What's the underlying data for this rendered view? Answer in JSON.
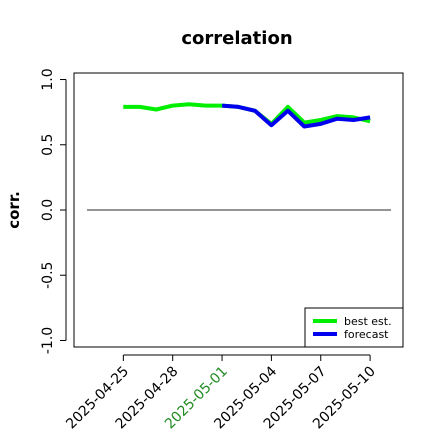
{
  "chart_data": {
    "type": "line",
    "title": "correlation",
    "xlabel": "",
    "ylabel": "corr.",
    "ylim": [
      -1.05,
      1.05
    ],
    "yticks": [
      {
        "value": -1.0,
        "label": "-1.0"
      },
      {
        "value": -0.5,
        "label": "-0.5"
      },
      {
        "value": 0.0,
        "label": "0.0"
      },
      {
        "value": 0.5,
        "label": "0.5"
      },
      {
        "value": 1.0,
        "label": "1.0"
      }
    ],
    "xlim": [
      "2025-04-22",
      "2025-05-12"
    ],
    "xticks": [
      {
        "date": "2025-04-25",
        "label": "2025-04-25",
        "color": "#000000"
      },
      {
        "date": "2025-04-28",
        "label": "2025-04-28",
        "color": "#000000"
      },
      {
        "date": "2025-05-01",
        "label": "2025-05-01",
        "color": "#228b22"
      },
      {
        "date": "2025-05-04",
        "label": "2025-05-04",
        "color": "#000000"
      },
      {
        "date": "2025-05-07",
        "label": "2025-05-07",
        "color": "#000000"
      },
      {
        "date": "2025-05-10",
        "label": "2025-05-10",
        "color": "#000000"
      }
    ],
    "hline": {
      "y": 0,
      "color": "#555555"
    },
    "series": [
      {
        "name": "best est.",
        "color": "#00ee00",
        "points": [
          {
            "x": "2025-04-25",
            "y": 0.79
          },
          {
            "x": "2025-04-26",
            "y": 0.79
          },
          {
            "x": "2025-04-27",
            "y": 0.77
          },
          {
            "x": "2025-04-28",
            "y": 0.8
          },
          {
            "x": "2025-04-29",
            "y": 0.81
          },
          {
            "x": "2025-04-30",
            "y": 0.8
          },
          {
            "x": "2025-05-01",
            "y": 0.8
          },
          {
            "x": "2025-05-02",
            "y": 0.79
          },
          {
            "x": "2025-05-03",
            "y": 0.76
          },
          {
            "x": "2025-05-04",
            "y": 0.66
          },
          {
            "x": "2025-05-05",
            "y": 0.79
          },
          {
            "x": "2025-05-06",
            "y": 0.67
          },
          {
            "x": "2025-05-07",
            "y": 0.69
          },
          {
            "x": "2025-05-08",
            "y": 0.72
          },
          {
            "x": "2025-05-09",
            "y": 0.71
          },
          {
            "x": "2025-05-10",
            "y": 0.68
          }
        ]
      },
      {
        "name": "forecast",
        "color": "#0000ee",
        "points": [
          {
            "x": "2025-05-01",
            "y": 0.8
          },
          {
            "x": "2025-05-02",
            "y": 0.79
          },
          {
            "x": "2025-05-03",
            "y": 0.76
          },
          {
            "x": "2025-05-04",
            "y": 0.65
          },
          {
            "x": "2025-05-05",
            "y": 0.76
          },
          {
            "x": "2025-05-06",
            "y": 0.64
          },
          {
            "x": "2025-05-07",
            "y": 0.66
          },
          {
            "x": "2025-05-08",
            "y": 0.7
          },
          {
            "x": "2025-05-09",
            "y": 0.69
          },
          {
            "x": "2025-05-10",
            "y": 0.71
          }
        ]
      }
    ],
    "legend": {
      "position": "bottom-right",
      "entries": [
        "best est.",
        "forecast"
      ]
    }
  }
}
